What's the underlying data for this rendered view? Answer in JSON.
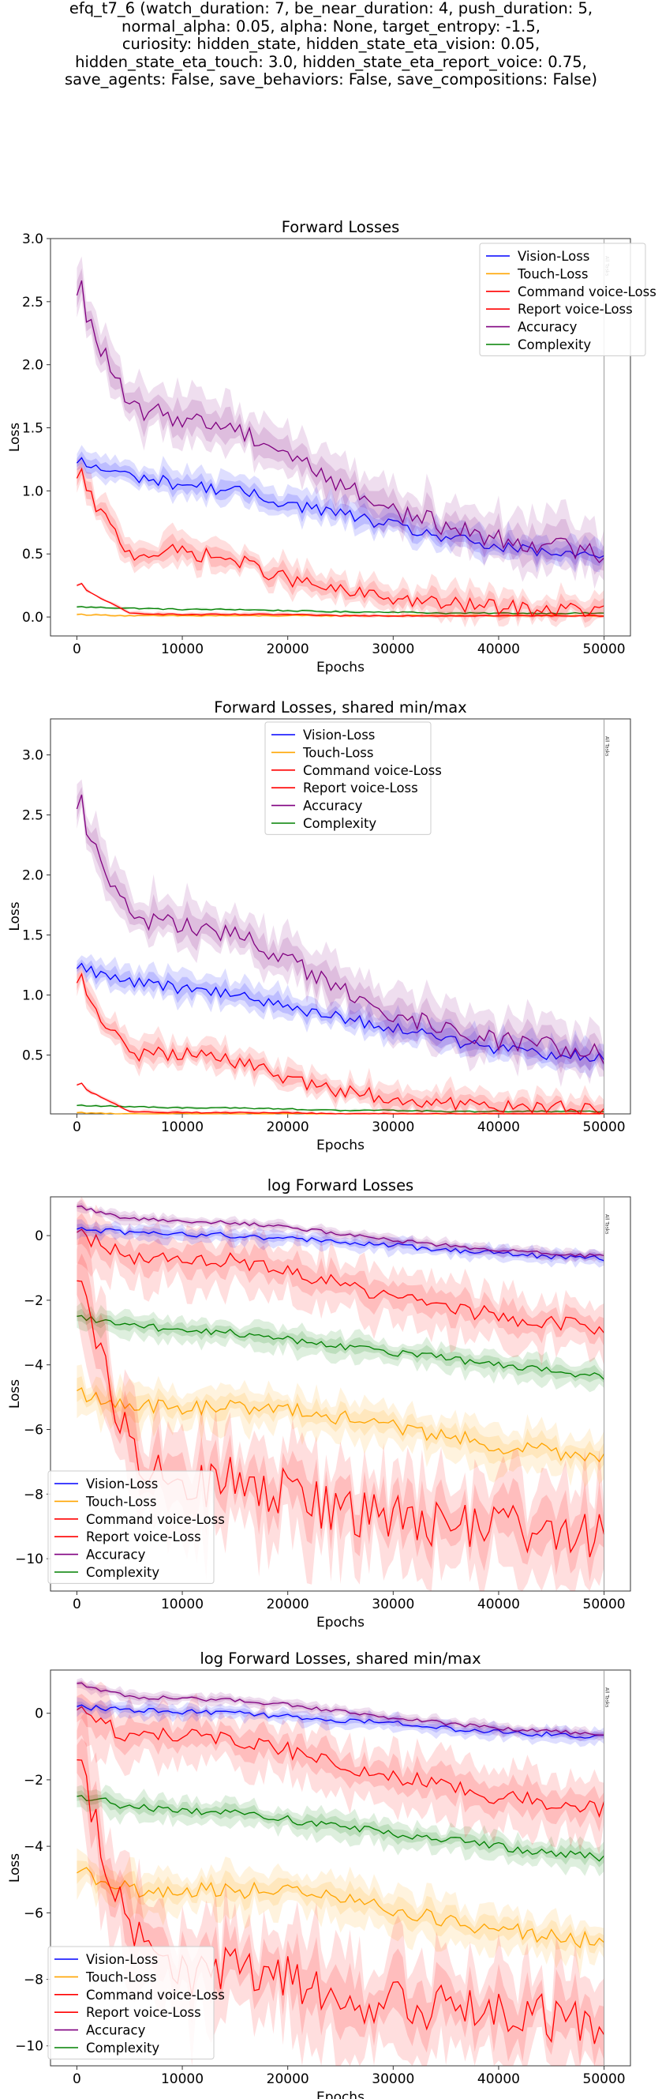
{
  "suptitle": [
    "efq_t7_6 (watch_duration: 7, be_near_duration: 4, push_duration: 5,",
    "normal_alpha: 0.05, alpha: None, target_entropy: -1.5,",
    "curiosity: hidden_state, hidden_state_eta_vision: 0.05,",
    "hidden_state_eta_touch: 3.0, hidden_state_eta_report_voice: 0.75,",
    "save_agents: False, save_behaviors: False, save_compositions: False)"
  ],
  "colors": {
    "Vision-Loss": "#0000ff",
    "Touch-Loss": "#ffa500",
    "Command voice-Loss": "#ff0000",
    "Report voice-Loss": "#ff0000",
    "Accuracy": "#800080",
    "Complexity": "#008000"
  },
  "chart_data": [
    {
      "type": "line",
      "title": "Forward Losses",
      "xlabel": "Epochs",
      "ylabel": "Loss",
      "xlim": [
        -2500,
        52500
      ],
      "ylim": [
        -0.15,
        3.0
      ],
      "xticks": [
        0,
        10000,
        20000,
        30000,
        40000,
        50000
      ],
      "yticks": [
        0.0,
        0.5,
        1.0,
        1.5,
        2.0,
        2.5,
        3.0
      ],
      "ytick_labels": [
        "0.0",
        "0.5",
        "1.0",
        "1.5",
        "2.0",
        "2.5",
        "3.0"
      ],
      "log": false,
      "legend_position": "upper right",
      "vline_label": "All Tasks",
      "series": [
        {
          "name": "Vision-Loss",
          "values": [
            1.22,
            1.12,
            1.05,
            1.0,
            0.9,
            0.82,
            0.72,
            0.63,
            0.55,
            0.5,
            0.48
          ]
        },
        {
          "name": "Touch-Loss",
          "values": [
            0.02,
            0.01,
            0.01,
            0.01,
            0.01,
            0.01,
            0.01,
            0.01,
            0.01,
            0.01,
            0.01
          ]
        },
        {
          "name": "Command voice-Loss",
          "values": [
            0.25,
            0.03,
            0.02,
            0.02,
            0.02,
            0.01,
            0.01,
            0.01,
            0.01,
            0.01,
            0.01
          ]
        },
        {
          "name": "Report voice-Loss",
          "values": [
            1.1,
            0.5,
            0.52,
            0.45,
            0.3,
            0.2,
            0.15,
            0.1,
            0.08,
            0.06,
            0.05
          ]
        },
        {
          "name": "Accuracy",
          "values": [
            2.55,
            1.65,
            1.58,
            1.5,
            1.3,
            1.05,
            0.85,
            0.72,
            0.62,
            0.57,
            0.5
          ]
        },
        {
          "name": "Complexity",
          "values": [
            0.08,
            0.07,
            0.06,
            0.06,
            0.05,
            0.04,
            0.04,
            0.03,
            0.03,
            0.03,
            0.03
          ]
        }
      ]
    },
    {
      "type": "line",
      "title": "Forward Losses, shared min/max",
      "xlabel": "Epochs",
      "ylabel": "Loss",
      "xlim": [
        -2500,
        52500
      ],
      "ylim": [
        0.01,
        3.3
      ],
      "xticks": [
        0,
        10000,
        20000,
        30000,
        40000,
        50000
      ],
      "yticks": [
        0.5,
        1.0,
        1.5,
        2.0,
        2.5,
        3.0
      ],
      "ytick_labels": [
        "0.5",
        "1.0",
        "1.5",
        "2.0",
        "2.5",
        "3.0"
      ],
      "log": false,
      "legend_position": "upper center",
      "vline_label": "All Tasks",
      "series": [
        {
          "name": "Vision-Loss",
          "values": [
            1.22,
            1.12,
            1.05,
            1.0,
            0.9,
            0.82,
            0.72,
            0.63,
            0.55,
            0.5,
            0.48
          ]
        },
        {
          "name": "Touch-Loss",
          "values": [
            0.02,
            0.01,
            0.01,
            0.01,
            0.01,
            0.01,
            0.01,
            0.01,
            0.01,
            0.01,
            0.01
          ]
        },
        {
          "name": "Command voice-Loss",
          "values": [
            0.25,
            0.03,
            0.02,
            0.02,
            0.02,
            0.01,
            0.01,
            0.01,
            0.01,
            0.01,
            0.01
          ]
        },
        {
          "name": "Report voice-Loss",
          "values": [
            1.1,
            0.5,
            0.52,
            0.45,
            0.3,
            0.2,
            0.15,
            0.1,
            0.08,
            0.06,
            0.05
          ]
        },
        {
          "name": "Accuracy",
          "values": [
            2.55,
            1.65,
            1.58,
            1.5,
            1.3,
            1.05,
            0.85,
            0.72,
            0.62,
            0.57,
            0.5
          ]
        },
        {
          "name": "Complexity",
          "values": [
            0.08,
            0.07,
            0.06,
            0.06,
            0.05,
            0.04,
            0.04,
            0.03,
            0.03,
            0.03,
            0.03
          ]
        }
      ]
    },
    {
      "type": "line",
      "title": "log Forward Losses",
      "xlabel": "Epochs",
      "ylabel": "Loss",
      "xlim": [
        -2500,
        52500
      ],
      "ylim": [
        -11,
        1.2
      ],
      "xticks": [
        0,
        10000,
        20000,
        30000,
        40000,
        50000
      ],
      "yticks": [
        -10,
        -8,
        -6,
        -4,
        -2,
        0
      ],
      "ytick_labels": [
        "−10",
        "−8",
        "−6",
        "−4",
        "−2",
        "0"
      ],
      "log": true,
      "legend_position": "lower left",
      "vline_label": "All Tasks",
      "series": [
        {
          "name": "Vision-Loss",
          "values": [
            0.2,
            0.1,
            0.05,
            0.0,
            -0.1,
            -0.2,
            -0.3,
            -0.45,
            -0.55,
            -0.65,
            -0.7
          ]
        },
        {
          "name": "Touch-Loss",
          "values": [
            -4.8,
            -5.3,
            -5.3,
            -5.3,
            -5.4,
            -5.6,
            -5.9,
            -6.2,
            -6.5,
            -6.7,
            -6.9
          ]
        },
        {
          "name": "Command voice-Loss",
          "values": [
            -1.4,
            -6.5,
            -7.8,
            -7.5,
            -8.0,
            -8.5,
            -8.8,
            -8.9,
            -9.0,
            -9.2,
            -9.3
          ]
        },
        {
          "name": "Report voice-Loss",
          "values": [
            0.1,
            -0.7,
            -0.7,
            -0.8,
            -1.1,
            -1.5,
            -1.9,
            -2.2,
            -2.5,
            -2.7,
            -2.9
          ]
        },
        {
          "name": "Accuracy",
          "values": [
            0.9,
            0.5,
            0.45,
            0.4,
            0.25,
            0.05,
            -0.15,
            -0.3,
            -0.45,
            -0.55,
            -0.65
          ]
        },
        {
          "name": "Complexity",
          "values": [
            -2.5,
            -2.8,
            -2.9,
            -3.0,
            -3.2,
            -3.4,
            -3.6,
            -3.8,
            -4.0,
            -4.2,
            -4.35
          ]
        }
      ]
    },
    {
      "type": "line",
      "title": "log Forward Losses, shared min/max",
      "xlabel": "Epochs",
      "ylabel": "Loss",
      "xlim": [
        -2500,
        52500
      ],
      "ylim": [
        -10.6,
        1.3
      ],
      "xticks": [
        0,
        10000,
        20000,
        30000,
        40000,
        50000
      ],
      "yticks": [
        -10,
        -8,
        -6,
        -4,
        -2,
        0
      ],
      "ytick_labels": [
        "−10",
        "−8",
        "−6",
        "−4",
        "−2",
        "0"
      ],
      "log": true,
      "legend_position": "lower left",
      "vline_label": "All Tasks",
      "series": [
        {
          "name": "Vision-Loss",
          "values": [
            0.2,
            0.1,
            0.05,
            0.0,
            -0.1,
            -0.2,
            -0.3,
            -0.45,
            -0.55,
            -0.65,
            -0.7
          ]
        },
        {
          "name": "Touch-Loss",
          "values": [
            -4.8,
            -5.3,
            -5.3,
            -5.3,
            -5.4,
            -5.6,
            -5.9,
            -6.2,
            -6.5,
            -6.7,
            -6.9
          ]
        },
        {
          "name": "Command voice-Loss",
          "values": [
            -1.4,
            -6.5,
            -7.8,
            -7.5,
            -8.0,
            -8.5,
            -8.8,
            -8.9,
            -9.0,
            -9.2,
            -9.3
          ]
        },
        {
          "name": "Report voice-Loss",
          "values": [
            0.1,
            -0.7,
            -0.7,
            -0.8,
            -1.1,
            -1.5,
            -1.9,
            -2.2,
            -2.5,
            -2.7,
            -2.9
          ]
        },
        {
          "name": "Accuracy",
          "values": [
            0.9,
            0.5,
            0.45,
            0.4,
            0.25,
            0.05,
            -0.15,
            -0.3,
            -0.45,
            -0.55,
            -0.65
          ]
        },
        {
          "name": "Complexity",
          "values": [
            -2.5,
            -2.8,
            -2.9,
            -3.0,
            -3.2,
            -3.4,
            -3.6,
            -3.8,
            -4.0,
            -4.2,
            -4.35
          ]
        }
      ]
    }
  ]
}
